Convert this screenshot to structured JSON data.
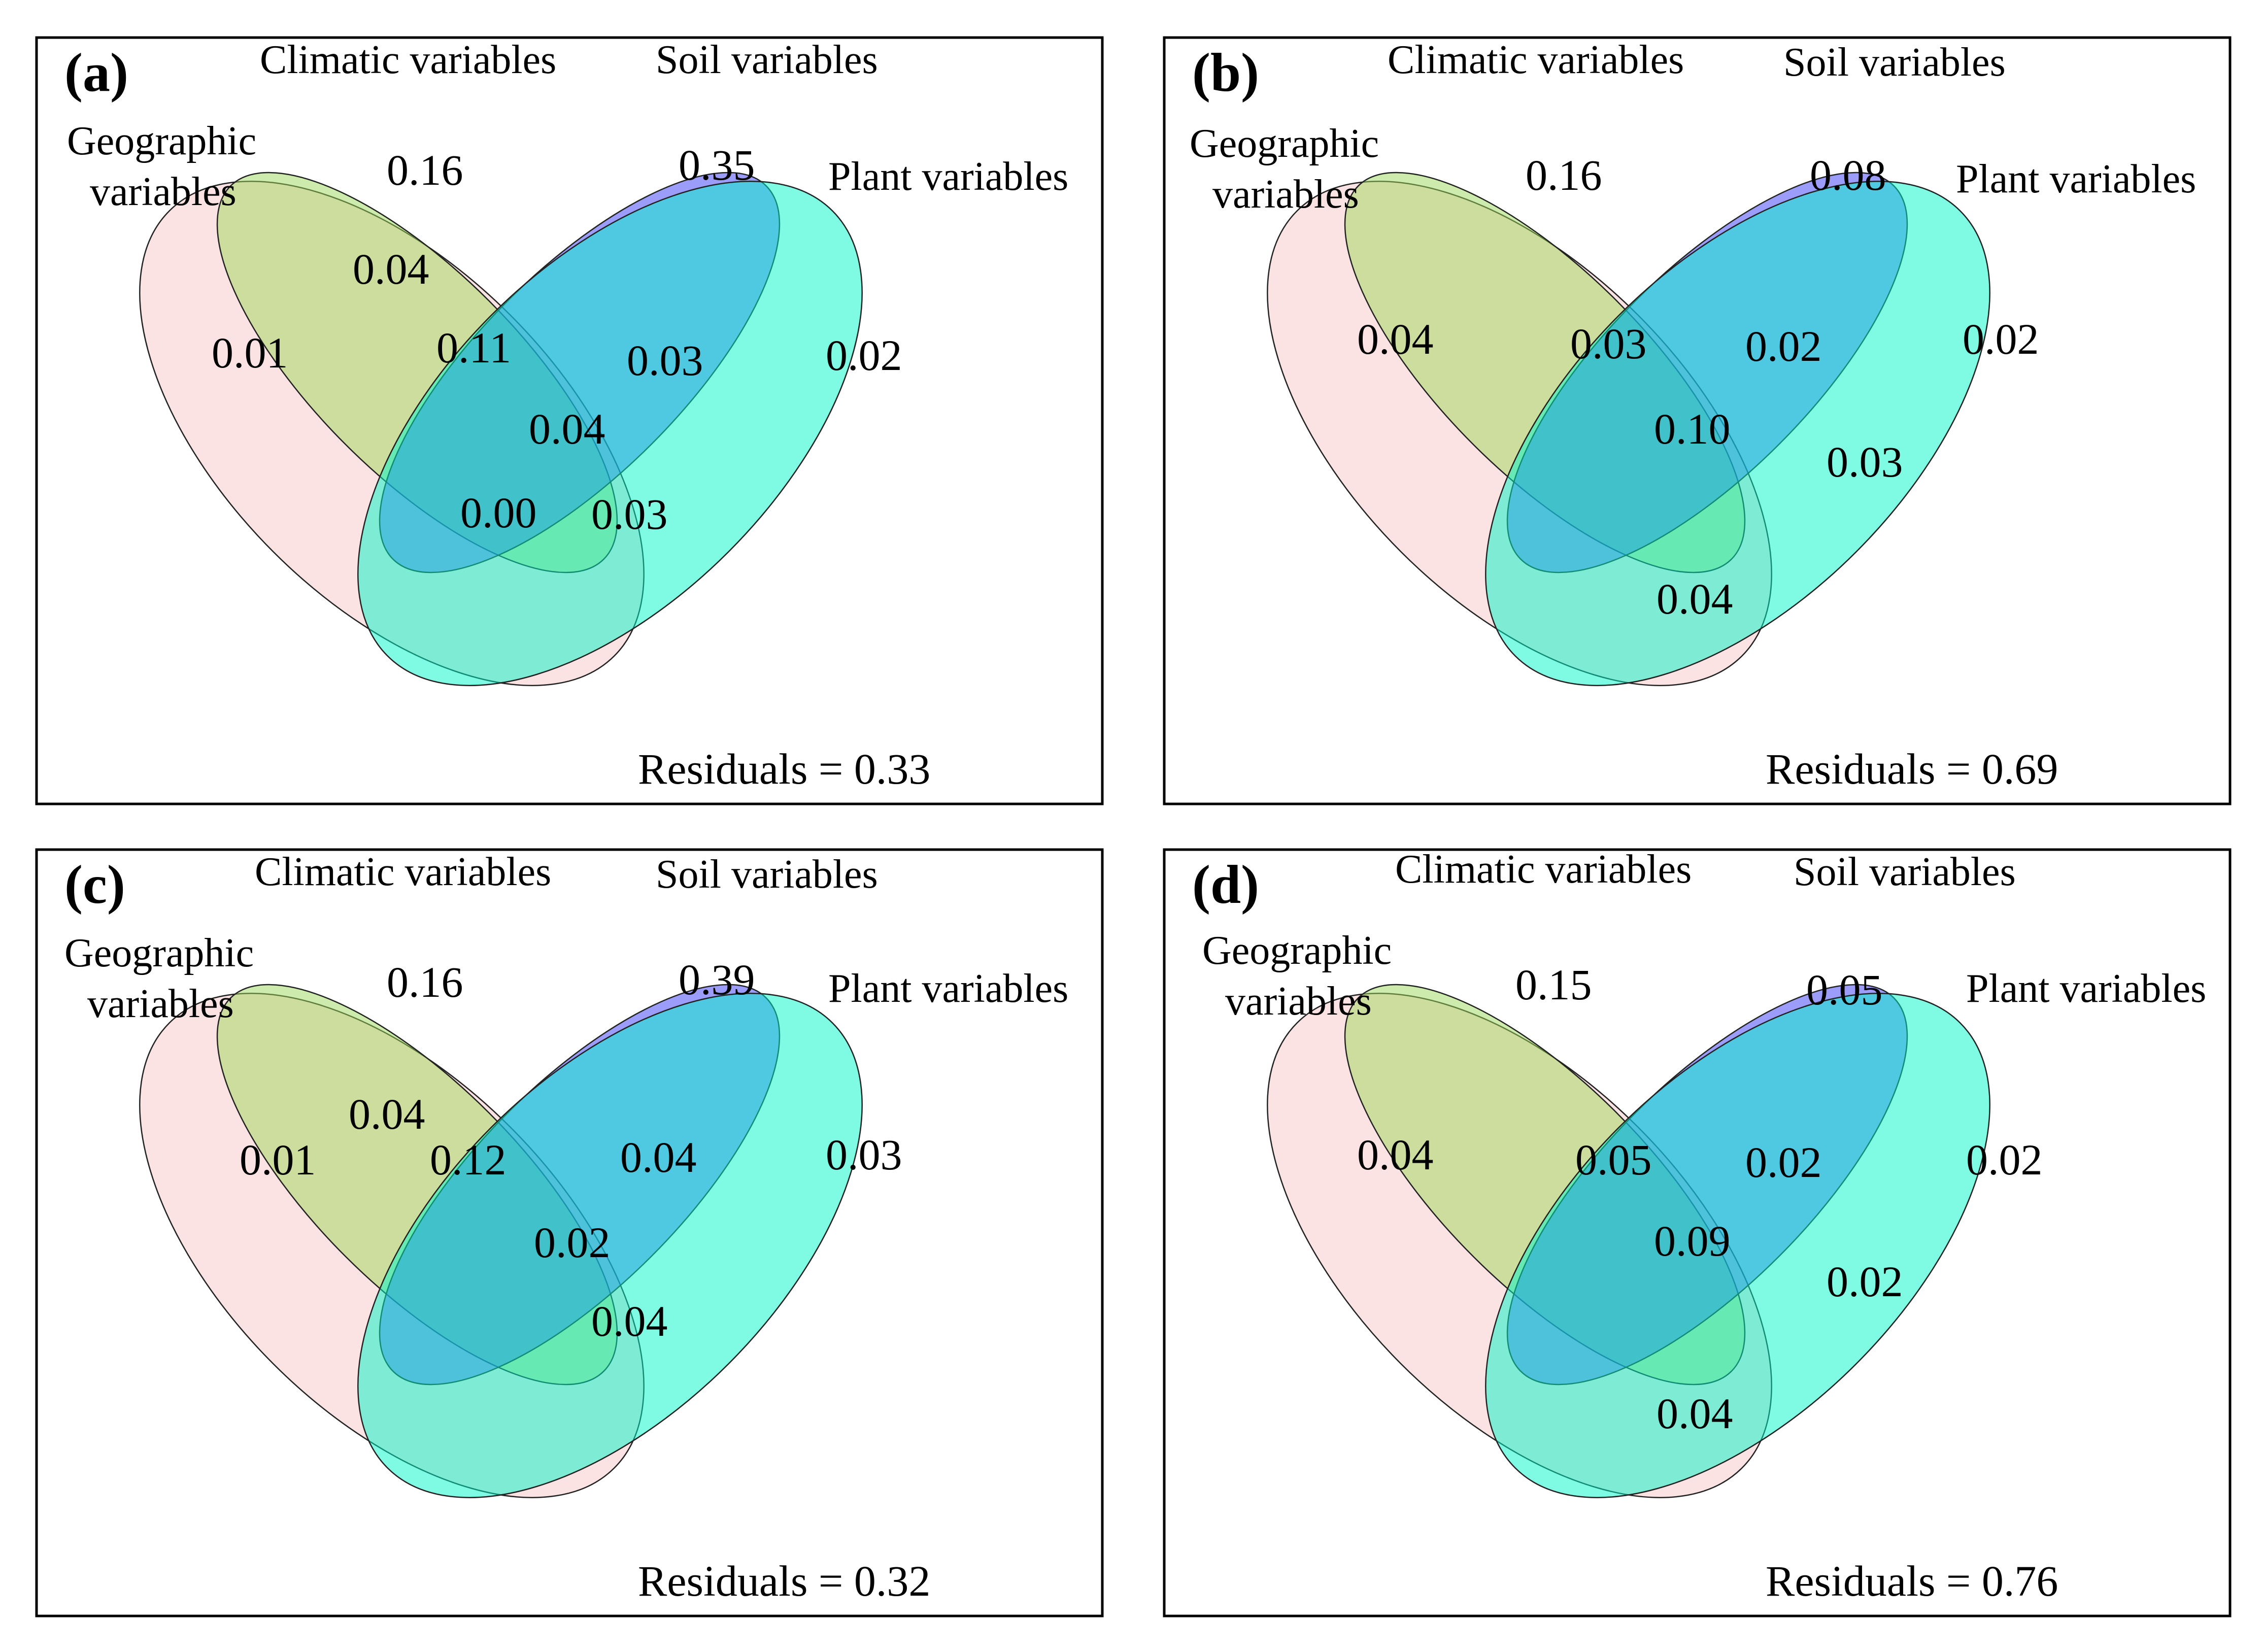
{
  "colors": {
    "geographic": "#F9C7C7",
    "climatic": "#9BD85A",
    "soil": "#3A3CF8",
    "plant": "#00F5C8"
  },
  "panels": [
    {
      "id": "(a)",
      "sets": {
        "climatic": "Climatic variables",
        "soil": "Soil variables",
        "geographic_line1": "Geographic",
        "geographic_line2": "variables",
        "plant": "Plant variables"
      },
      "values": {
        "G": "0.01",
        "C": "0.16",
        "S": "0.35",
        "P": "0.02",
        "GC": "0.04",
        "GCS": "0.11",
        "CSP": "0.03",
        "GCSP": "0.04",
        "GSP": "0.00",
        "GCP": "0.03"
      },
      "residuals": "Residuals = 0.33"
    },
    {
      "id": "(b)",
      "sets": {
        "climatic": "Climatic variables",
        "soil": "Soil variables",
        "geographic_line1": "Geographic",
        "geographic_line2": "variables",
        "plant": "Plant variables"
      },
      "values": {
        "G": "0.04",
        "C": "0.16",
        "S": "0.08",
        "P": "0.02",
        "GCS": "0.03",
        "CSP": "0.02",
        "GCSP": "0.10",
        "CP": "0.03",
        "GP": "0.04"
      },
      "residuals": "Residuals = 0.69"
    },
    {
      "id": "(c)",
      "sets": {
        "climatic": "Climatic variables",
        "soil": "Soil variables",
        "geographic_line1": "Geographic",
        "geographic_line2": "variables",
        "plant": "Plant variables"
      },
      "values": {
        "G": "0.01",
        "C": "0.16",
        "S": "0.39",
        "P": "0.03",
        "GC": "0.04",
        "GCS": "0.12",
        "CSP": "0.04",
        "GCSP": "0.02",
        "GCP": "0.04"
      },
      "residuals": "Residuals = 0.32"
    },
    {
      "id": "(d)",
      "sets": {
        "climatic": "Climatic variables",
        "soil": "Soil variables",
        "geographic_line1": "Geographic",
        "geographic_line2": "variables",
        "plant": "Plant variables"
      },
      "values": {
        "G": "0.04",
        "C": "0.15",
        "S": "0.05",
        "P": "0.02",
        "GCS": "0.05",
        "CSP": "0.02",
        "GCSP": "0.09",
        "CP": "0.02",
        "GP": "0.04"
      },
      "residuals": "Residuals = 0.76"
    }
  ]
}
